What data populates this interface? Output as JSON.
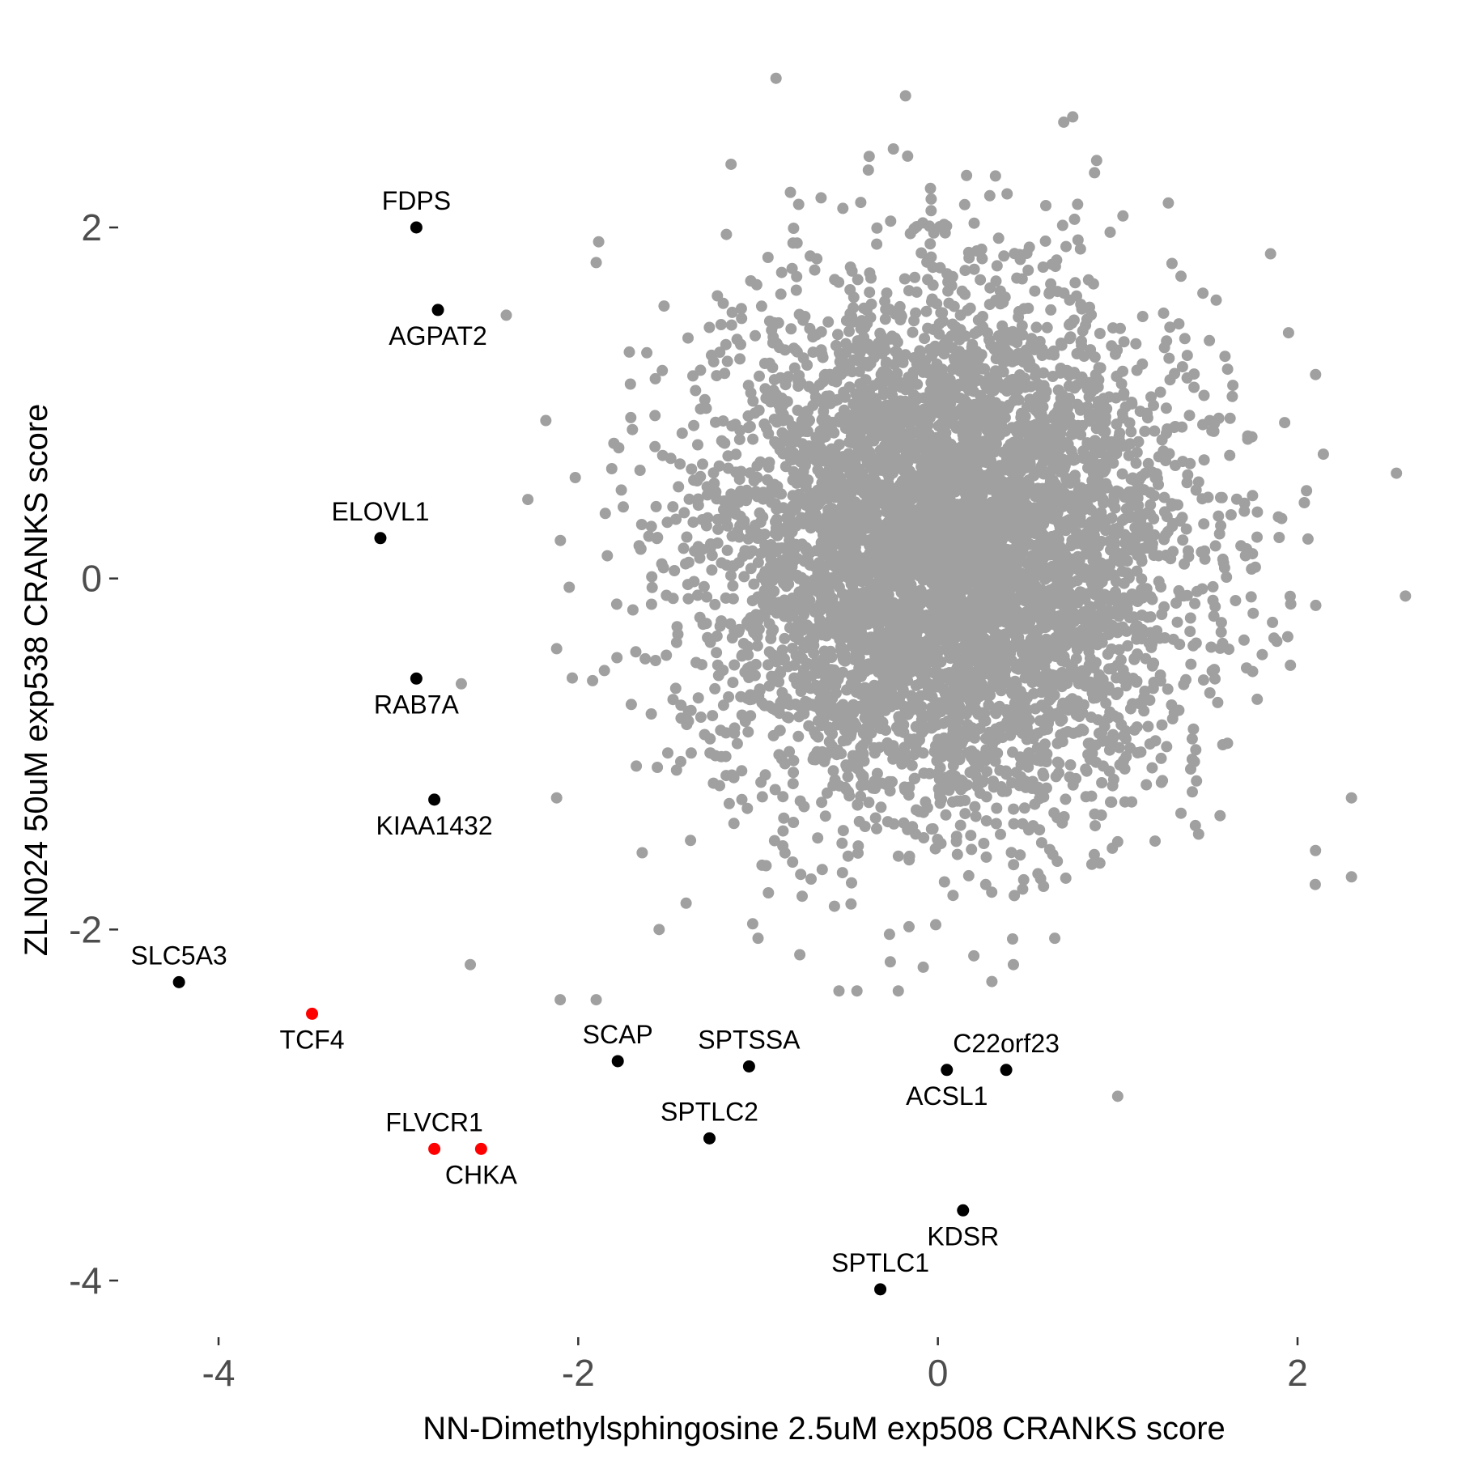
{
  "chart_data": {
    "type": "scatter",
    "xlabel": "NN-Dimethylsphingosine 2.5uM exp508 CRANKS score",
    "ylabel": "ZLN024 50uM exp538 CRANKS score",
    "xlim": [
      -4.4,
      2.6
    ],
    "ylim": [
      -4.2,
      3.0
    ],
    "x_ticks": [
      -4,
      -2,
      0,
      2
    ],
    "y_ticks": [
      -4,
      -2,
      0,
      2
    ],
    "x_tick_labels": [
      "-4",
      "-2",
      "0",
      "2"
    ],
    "y_tick_labels": [
      "-4",
      "-2",
      "0",
      "2"
    ],
    "grid": false,
    "colors": {
      "background": "#ffffff",
      "points": "#a0a0a0",
      "highlight": "#000000",
      "red": "#ff0000"
    },
    "background_cloud": {
      "description_color": "#a0a0a0",
      "x_mean": 0.05,
      "y_mean": 0.15,
      "x_sd": 0.65,
      "y_sd": 0.72,
      "n_points": 6000
    },
    "outliers": [
      {
        "x": -0.9,
        "y": 2.85
      },
      {
        "x": -0.18,
        "y": 2.75
      },
      {
        "x": 0.7,
        "y": 2.6
      },
      {
        "x": 0.75,
        "y": 2.63
      },
      {
        "x": -1.15,
        "y": 2.36
      },
      {
        "x": -0.82,
        "y": 2.2
      },
      {
        "x": -1.9,
        "y": 1.8
      },
      {
        "x": -2.4,
        "y": 1.5
      },
      {
        "x": -2.18,
        "y": 0.9
      },
      {
        "x": -2.28,
        "y": 0.45
      },
      {
        "x": -2.05,
        "y": -0.05
      },
      {
        "x": -2.12,
        "y": -0.4
      },
      {
        "x": -2.65,
        "y": -0.6
      },
      {
        "x": -2.12,
        "y": -1.25
      },
      {
        "x": -2.6,
        "y": -2.2
      },
      {
        "x": -2.1,
        "y": -2.4
      },
      {
        "x": -1.9,
        "y": -2.4
      },
      {
        "x": -0.55,
        "y": -2.35
      },
      {
        "x": -0.45,
        "y": -2.35
      },
      {
        "x": -0.22,
        "y": -2.35
      },
      {
        "x": 1.0,
        "y": -2.95
      },
      {
        "x": 1.0,
        "y": -1.5
      },
      {
        "x": 2.55,
        "y": 0.6
      },
      {
        "x": 2.6,
        "y": -0.1
      },
      {
        "x": 2.3,
        "y": -1.25
      },
      {
        "x": 2.1,
        "y": -1.55
      },
      {
        "x": 2.3,
        "y": -1.7
      },
      {
        "x": 2.05,
        "y": 0.5
      },
      {
        "x": 1.95,
        "y": 1.4
      },
      {
        "x": 1.85,
        "y": 1.85
      },
      {
        "x": -1.0,
        "y": -2.05
      },
      {
        "x": 0.65,
        "y": -2.05
      },
      {
        "x": 0.42,
        "y": -2.2
      },
      {
        "x": 0.2,
        "y": -2.15
      },
      {
        "x": -1.55,
        "y": -2.0
      },
      {
        "x": -1.4,
        "y": -1.85
      }
    ],
    "labeled_points": [
      {
        "gene": "FDPS",
        "x": -2.9,
        "y": 2.0,
        "color": "#000000",
        "label_pos": "above"
      },
      {
        "gene": "AGPAT2",
        "x": -2.78,
        "y": 1.53,
        "color": "#000000",
        "label_pos": "below"
      },
      {
        "gene": "ELOVL1",
        "x": -3.1,
        "y": 0.23,
        "color": "#000000",
        "label_pos": "above"
      },
      {
        "gene": "RAB7A",
        "x": -2.9,
        "y": -0.57,
        "color": "#000000",
        "label_pos": "below"
      },
      {
        "gene": "KIAA1432",
        "x": -2.8,
        "y": -1.26,
        "color": "#000000",
        "label_pos": "below"
      },
      {
        "gene": "SLC5A3",
        "x": -4.22,
        "y": -2.3,
        "color": "#000000",
        "label_pos": "above"
      },
      {
        "gene": "TCF4",
        "x": -3.48,
        "y": -2.48,
        "color": "#ff0000",
        "label_pos": "below"
      },
      {
        "gene": "FLVCR1",
        "x": -2.8,
        "y": -3.25,
        "color": "#ff0000",
        "label_pos": "above"
      },
      {
        "gene": "CHKA",
        "x": -2.54,
        "y": -3.25,
        "color": "#ff0000",
        "label_pos": "below"
      },
      {
        "gene": "SCAP",
        "x": -1.78,
        "y": -2.75,
        "color": "#000000",
        "label_pos": "above"
      },
      {
        "gene": "SPTSSA",
        "x": -1.05,
        "y": -2.78,
        "color": "#000000",
        "label_pos": "above"
      },
      {
        "gene": "SPTLC2",
        "x": -1.27,
        "y": -3.19,
        "color": "#000000",
        "label_pos": "above"
      },
      {
        "gene": "ACSL1",
        "x": 0.05,
        "y": -2.8,
        "color": "#000000",
        "label_pos": "below"
      },
      {
        "gene": "C22orf23",
        "x": 0.38,
        "y": -2.8,
        "color": "#000000",
        "label_pos": "above"
      },
      {
        "gene": "KDSR",
        "x": 0.14,
        "y": -3.6,
        "color": "#000000",
        "label_pos": "below"
      },
      {
        "gene": "SPTLC1",
        "x": -0.32,
        "y": -4.05,
        "color": "#000000",
        "label_pos": "above"
      }
    ]
  }
}
